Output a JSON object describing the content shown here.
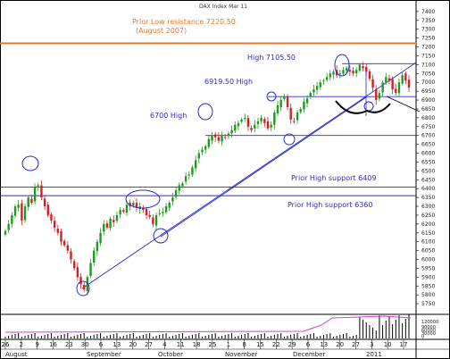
{
  "title": "DAX Index Mar 11",
  "colors": {
    "up": "#1f9a1f",
    "down": "#d42020",
    "annotation_blue": "#2a2ad0",
    "annotation_orange": "#e8772a",
    "resistance_line": "#e8772a",
    "support_line": "#2a2ad0",
    "volume": "#000000",
    "volume_avg": "#d040d0",
    "curve": "#000000"
  },
  "annotations": {
    "resistance_label": "Prior Low resistance 7220.50",
    "resistance_sub": "(August 2007)",
    "high_7105": "High 7105.50",
    "high_6919": "6919.50 High",
    "high_6700": "6700 High",
    "support_6409": "Prior High support 6409",
    "support_6360": "Prior High support 6360"
  },
  "chart_data": {
    "type": "candlestick",
    "title": "DAX Index Mar 11",
    "ylim": [
      5700,
      7450
    ],
    "y_ticks": [
      "7400",
      "7350",
      "7300",
      "7250",
      "7200",
      "7150",
      "7100",
      "7050",
      "7000",
      "6950",
      "6900",
      "6850",
      "6800",
      "6750",
      "6700",
      "6650",
      "6600",
      "6550",
      "6500",
      "6450",
      "6400",
      "6350",
      "6300",
      "6250",
      "6200",
      "6150",
      "6100",
      "6050",
      "6000",
      "5950",
      "5900",
      "5850",
      "5800",
      "5750"
    ],
    "x_tick_labels": [
      "26",
      "2",
      "9",
      "16",
      "23",
      "30",
      "6",
      "13",
      "20",
      "27",
      "4",
      "11",
      "18",
      "25",
      "1",
      "8",
      "15",
      "22",
      "29",
      "6",
      "13",
      "20",
      "27",
      "3",
      "10",
      "17"
    ],
    "months": [
      "August",
      "September",
      "October",
      "November",
      "December",
      "2011"
    ],
    "horizontal_lines": [
      {
        "name": "resistance",
        "value": 7220.5
      },
      {
        "name": "high_7105",
        "value": 7105.5
      },
      {
        "name": "high_6919",
        "value": 6919.5
      },
      {
        "name": "high_6700",
        "value": 6700
      },
      {
        "name": "support_6409",
        "value": 6409
      },
      {
        "name": "support_6360",
        "value": 6360
      }
    ],
    "closes": [
      6160,
      6200,
      6250,
      6300,
      6310,
      6220,
      6300,
      6350,
      6320,
      6410,
      6420,
      6350,
      6300,
      6250,
      6220,
      6180,
      6150,
      6100,
      6080,
      6050,
      6000,
      5950,
      5900,
      5860,
      5830,
      5900,
      5980,
      6050,
      6100,
      6150,
      6200,
      6180,
      6230,
      6210,
      6250,
      6280,
      6270,
      6310,
      6300,
      6320,
      6290,
      6300,
      6280,
      6250,
      6240,
      6200,
      6250,
      6260,
      6270,
      6300,
      6320,
      6350,
      6390,
      6420,
      6430,
      6470,
      6480,
      6520,
      6560,
      6600,
      6620,
      6640,
      6680,
      6700,
      6690,
      6670,
      6700,
      6690,
      6710,
      6730,
      6760,
      6770,
      6790,
      6800,
      6750,
      6730,
      6760,
      6780,
      6800,
      6770,
      6740,
      6760,
      6830,
      6870,
      6900,
      6920,
      6860,
      6790,
      6780,
      6830,
      6850,
      6890,
      6910,
      6940,
      6960,
      6980,
      7000,
      7010,
      7030,
      7050,
      7060,
      7040,
      7050,
      7070,
      7080,
      7060,
      7050,
      7070,
      7100,
      7080,
      7060,
      7020,
      6970,
      6900,
      6940,
      7000,
      7030,
      7010,
      6960,
      6940,
      7000,
      7040,
      7010,
      6970
    ],
    "volume_max_label": "120000"
  }
}
